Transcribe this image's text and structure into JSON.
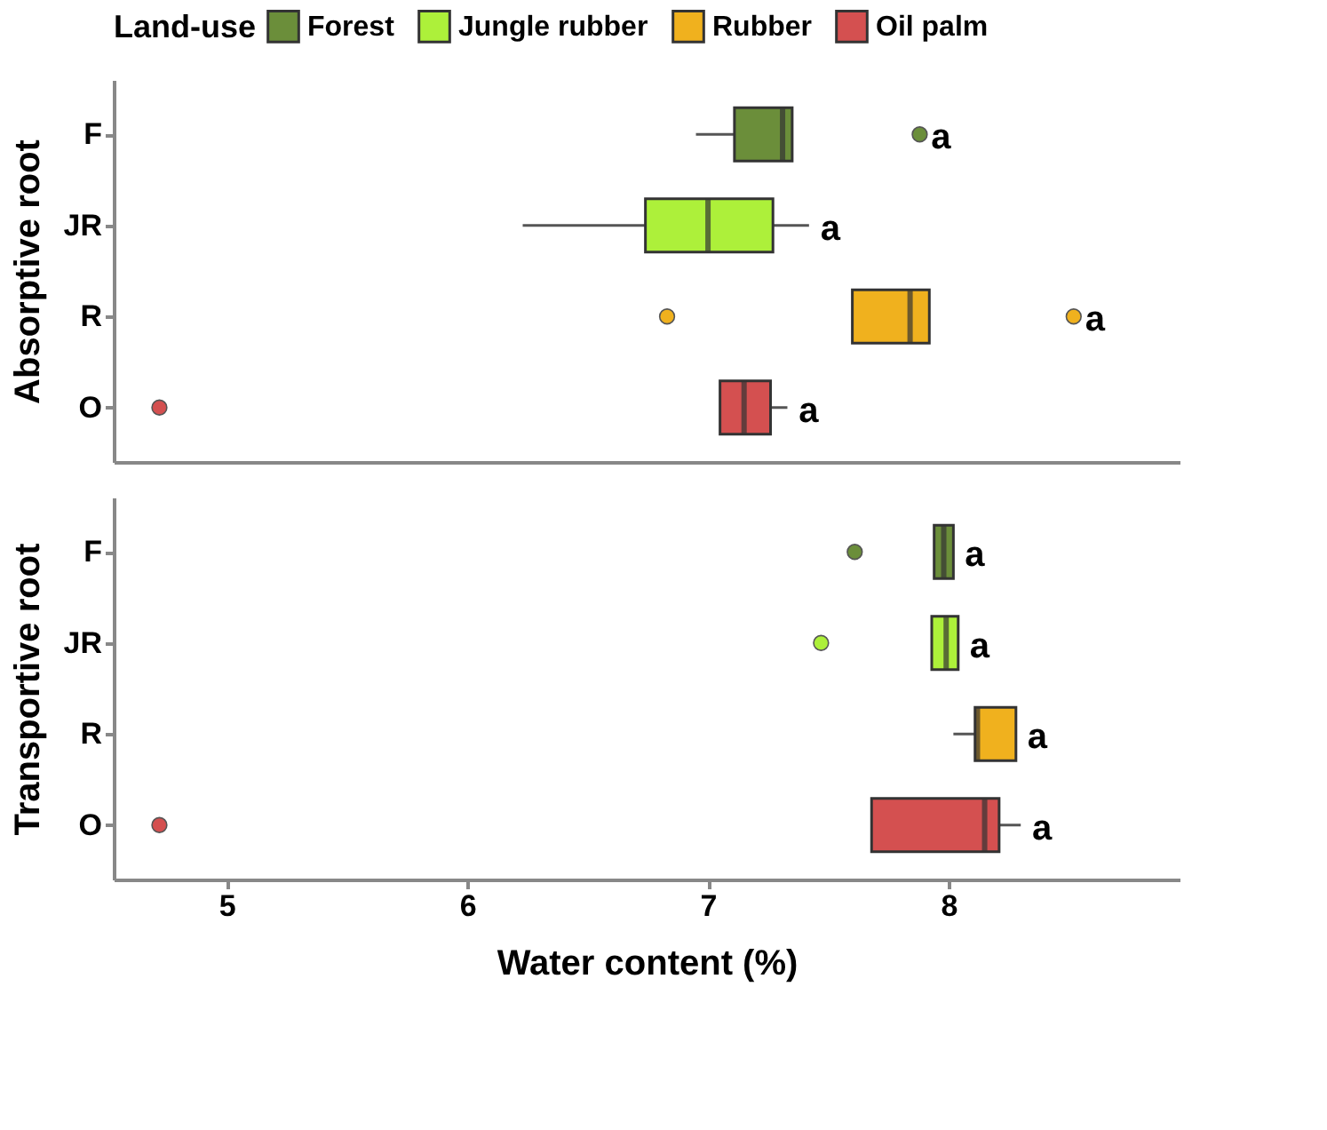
{
  "chart_data": [
    {
      "type": "box",
      "orientation": "horizontal",
      "ylabel": "Absorptive root",
      "legend_title": "Land-use",
      "legend": "top",
      "tick_labels": "y",
      "categories": [
        "F",
        "JR",
        "R",
        "O"
      ],
      "xlim": [
        4.53,
        8.96
      ],
      "xticks": [
        5,
        6,
        7,
        8
      ],
      "series": [
        {
          "name": "Forest",
          "color": "#6b8e3a",
          "boxes": [
            {
              "low": 6.95,
              "q1": 7.11,
              "median": 7.31,
              "q3": 7.35,
              "high": 7.35,
              "outliers": [
                7.88
              ]
            },
            null,
            null,
            null
          ]
        },
        {
          "name": "Jungle rubber",
          "color": "#adf03a",
          "boxes": [
            null,
            {
              "low": 6.23,
              "q1": 6.74,
              "median": 7.0,
              "q3": 7.27,
              "high": 7.42
            },
            null,
            null
          ]
        },
        {
          "name": "Rubber",
          "color": "#f0b11e",
          "boxes": [
            null,
            null,
            {
              "low": 7.6,
              "q1": 7.6,
              "median": 7.84,
              "q3": 7.92,
              "high": 7.92,
              "outliers": [
                6.83,
                8.52
              ]
            },
            null
          ]
        },
        {
          "name": "Oil palm",
          "color": "#d45050",
          "boxes": [
            null,
            null,
            null,
            {
              "low": 7.05,
              "q1": 7.05,
              "median": 7.15,
              "q3": 7.26,
              "high": 7.33,
              "outliers": [
                4.72
              ]
            }
          ]
        }
      ],
      "annotations": [
        "a",
        "a",
        "a",
        "a"
      ]
    },
    {
      "type": "box",
      "orientation": "horizontal",
      "ylabel": "Transportive root",
      "xlabel": "Water content (%)",
      "categories": [
        "F",
        "JR",
        "R",
        "O"
      ],
      "xlim": [
        4.53,
        8.96
      ],
      "xticks": [
        5,
        6,
        7,
        8
      ],
      "series": [
        {
          "color": "#6b8e3a",
          "boxes": [
            {
              "low": 7.94,
              "q1": 7.94,
              "median": 7.98,
              "q3": 8.02,
              "high": 8.02,
              "outliers": [
                7.61
              ]
            },
            null,
            null,
            null
          ]
        },
        {
          "color": "#adf03a",
          "boxes": [
            null,
            {
              "low": 7.93,
              "q1": 7.93,
              "median": 7.99,
              "q3": 8.04,
              "high": 8.04,
              "outliers": [
                7.47
              ]
            },
            null,
            null
          ]
        },
        {
          "color": "#f0b11e",
          "boxes": [
            null,
            null,
            {
              "low": 8.02,
              "q1": 8.11,
              "median": 8.12,
              "q3": 8.28,
              "high": 8.28
            },
            null
          ]
        },
        {
          "color": "#d45050",
          "boxes": [
            null,
            null,
            null,
            {
              "low": 7.68,
              "q1": 7.68,
              "median": 8.15,
              "q3": 8.21,
              "high": 8.3,
              "outliers": [
                4.72
              ]
            }
          ]
        }
      ],
      "annotations": [
        "a",
        "a",
        "a",
        "a"
      ]
    }
  ]
}
